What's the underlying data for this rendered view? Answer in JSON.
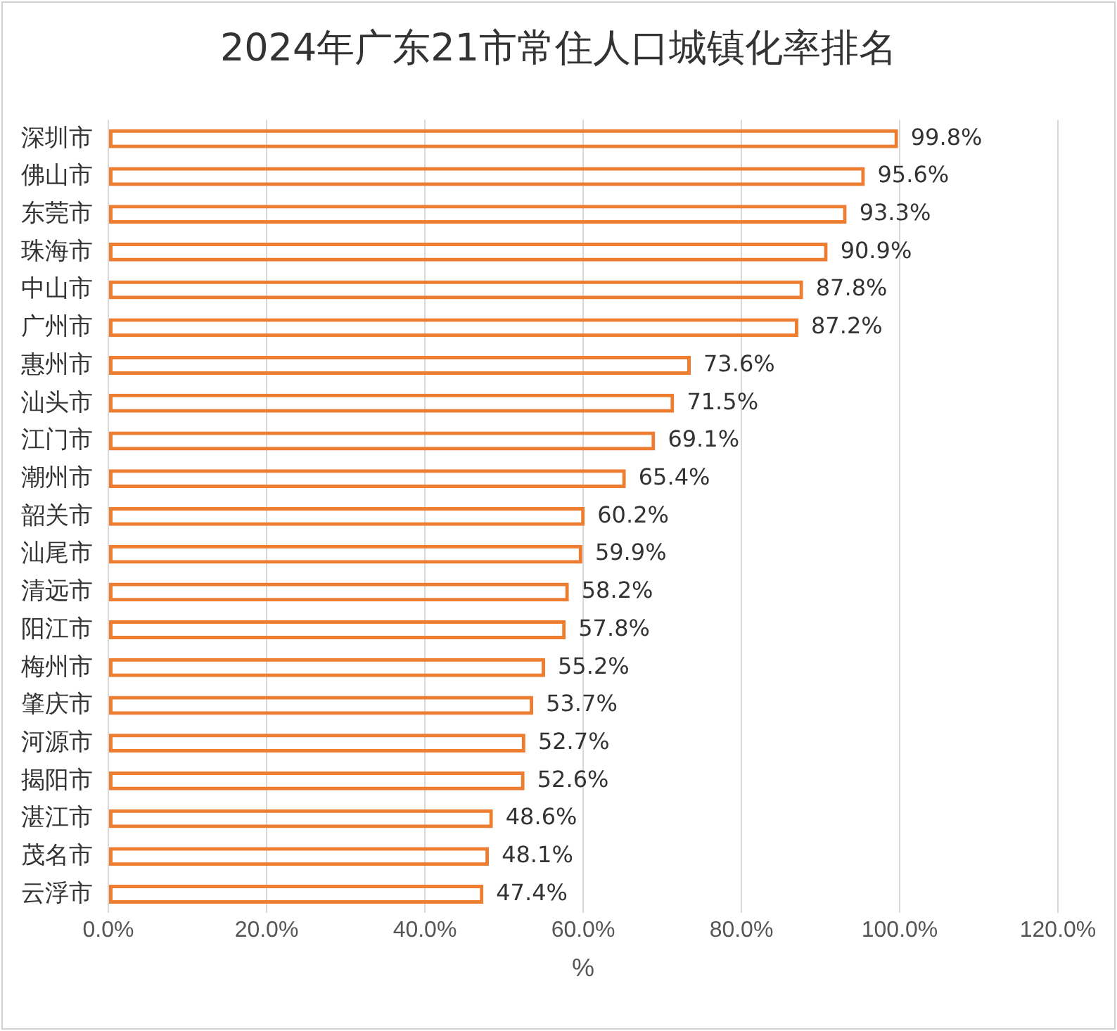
{
  "chart_data": {
    "type": "bar",
    "orientation": "horizontal",
    "title": "2024年广东21市常住人口城镇化率排名",
    "xlabel": "%",
    "categories": [
      "深圳市",
      "佛山市",
      "东莞市",
      "珠海市",
      "中山市",
      "广州市",
      "惠州市",
      "汕头市",
      "江门市",
      "潮州市",
      "韶关市",
      "汕尾市",
      "清远市",
      "阳江市",
      "梅州市",
      "肇庆市",
      "河源市",
      "揭阳市",
      "湛江市",
      "茂名市",
      "云浮市"
    ],
    "series": [
      {
        "color": "#ed7d31",
        "values": [
          99.8,
          95.6,
          93.3,
          90.9,
          87.8,
          87.2,
          73.6,
          71.5,
          69.1,
          65.4,
          60.2,
          59.9,
          58.2,
          57.8,
          55.2,
          53.7,
          52.7,
          52.6,
          48.6,
          48.1,
          47.4
        ],
        "value_labels": [
          "99.8%",
          "95.6%",
          "93.3%",
          "90.9%",
          "87.8%",
          "87.2%",
          "73.6%",
          "71.5%",
          "69.1%",
          "65.4%",
          "60.2%",
          "59.9%",
          "58.2%",
          "57.8%",
          "55.2%",
          "53.7%",
          "52.7%",
          "52.6%",
          "48.6%",
          "48.1%",
          "47.4%"
        ]
      }
    ],
    "xlim": [
      0,
      120
    ],
    "xticks": [
      {
        "value": 0,
        "label": "0.0%"
      },
      {
        "value": 20,
        "label": "20.0%"
      },
      {
        "value": 40,
        "label": "40.0%"
      },
      {
        "value": 60,
        "label": "60.0%"
      },
      {
        "value": 80,
        "label": "80.0%"
      },
      {
        "value": 100,
        "label": "100.0%"
      },
      {
        "value": 120,
        "label": "120.0%"
      }
    ],
    "grid": "x",
    "legend": false
  }
}
